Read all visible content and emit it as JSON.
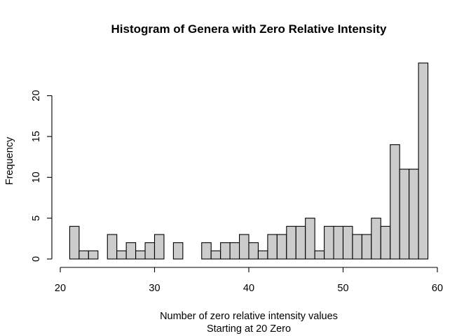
{
  "chart_data": {
    "type": "bar",
    "title": "Histogram of Genera with Zero Relative Intensity",
    "xlabel": "Number of zero relative intensity values",
    "xlabel_line2": "Starting at 20 Zero",
    "ylabel": "Frequency",
    "bin_width": 1,
    "bin_start": 21,
    "values": [
      4,
      1,
      1,
      0,
      3,
      1,
      2,
      1,
      2,
      3,
      0,
      2,
      0,
      0,
      2,
      1,
      2,
      2,
      3,
      2,
      1,
      3,
      3,
      4,
      4,
      5,
      1,
      4,
      4,
      4,
      3,
      3,
      5,
      4,
      14,
      11,
      11,
      24
    ],
    "xlim": [
      20,
      60
    ],
    "ylim": [
      0,
      24
    ],
    "x_ticks": [
      "20",
      "30",
      "40",
      "50",
      "60"
    ],
    "y_ticks": [
      "0",
      "5",
      "10",
      "15",
      "20"
    ],
    "bar_color": "#cccccc",
    "grid": false,
    "legend": "none"
  }
}
